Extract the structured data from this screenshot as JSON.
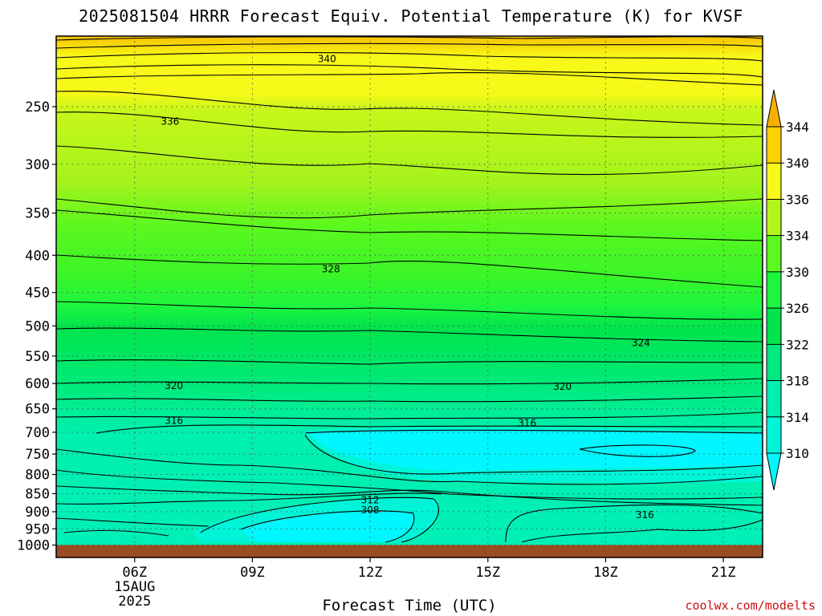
{
  "chart_data": {
    "type": "heatmap",
    "title": "2025081504 HRRR Forecast Equiv. Potential Temperature (K) for KVSF",
    "xlabel": "Forecast Time (UTC)",
    "ylabel": "",
    "credit": "coolwx.com/modelts",
    "x_ticks": [
      {
        "label": "06Z",
        "hour": 6,
        "sub": [
          "15AUG",
          "2025"
        ]
      },
      {
        "label": "09Z",
        "hour": 9
      },
      {
        "label": "12Z",
        "hour": 12
      },
      {
        "label": "15Z",
        "hour": 15
      },
      {
        "label": "18Z",
        "hour": 18
      },
      {
        "label": "21Z",
        "hour": 21
      }
    ],
    "xlim": [
      4,
      22
    ],
    "y_ticks": [
      250,
      300,
      350,
      400,
      450,
      500,
      550,
      600,
      650,
      700,
      750,
      800,
      850,
      900,
      950,
      1000
    ],
    "ylim_hpa": [
      200,
      1040
    ],
    "y_scale": "log-pressure",
    "grid": true,
    "colorbar": {
      "levels": [
        310,
        314,
        318,
        322,
        326,
        330,
        334,
        336,
        340,
        344
      ],
      "colors": [
        "#00f7ff",
        "#00f5d8",
        "#00f0b0",
        "#00e880",
        "#00e44c",
        "#1df53f",
        "#5df81e",
        "#b2f51b",
        "#f7fa18",
        "#fad200",
        "#f7b000"
      ],
      "extend": "both"
    },
    "contour_labels": [
      {
        "value": 340,
        "hour": 10.9,
        "p": 215
      },
      {
        "value": 336,
        "hour": 6.9,
        "p": 262
      },
      {
        "value": 328,
        "hour": 11.0,
        "p": 418
      },
      {
        "value": 324,
        "hour": 18.9,
        "p": 528
      },
      {
        "value": 320,
        "hour": 7.0,
        "p": 604
      },
      {
        "value": 320,
        "hour": 16.9,
        "p": 606
      },
      {
        "value": 316,
        "hour": 7.0,
        "p": 675
      },
      {
        "value": 316,
        "hour": 16.0,
        "p": 680
      },
      {
        "value": 316,
        "hour": 19.0,
        "p": 909
      },
      {
        "value": 312,
        "hour": 12.0,
        "p": 868
      },
      {
        "value": 308,
        "hour": 12.0,
        "p": 896
      }
    ],
    "ground_hpa": 1000,
    "colors": {
      "ground": "#9b4d22",
      "contour": "#000000",
      "grid": "#555555"
    }
  }
}
